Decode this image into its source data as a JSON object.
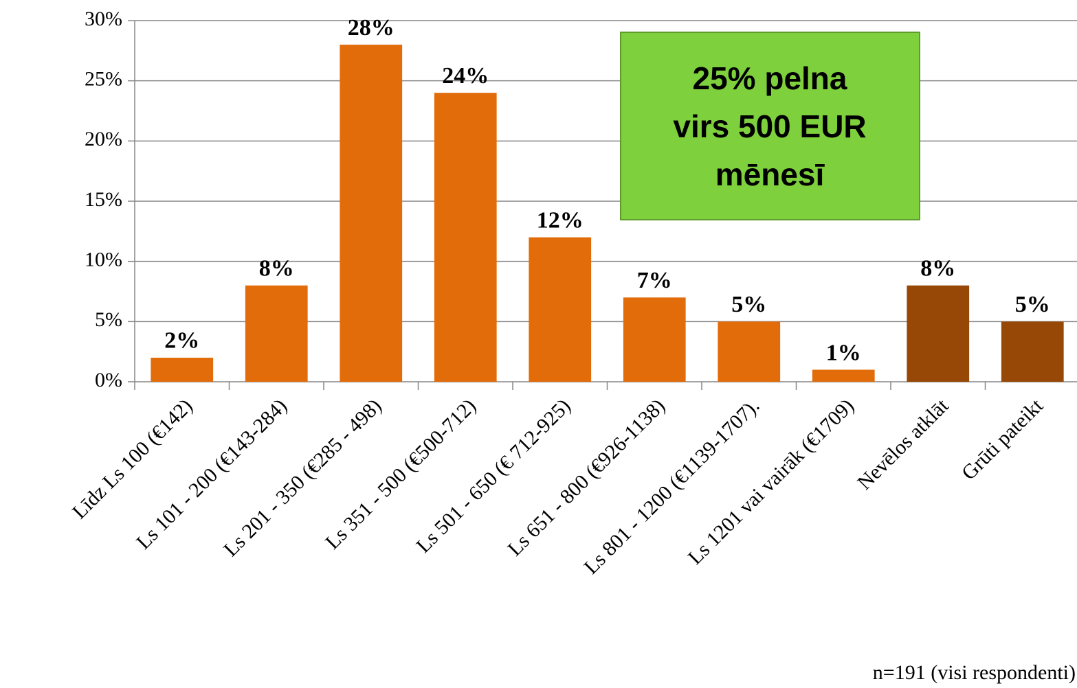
{
  "chart_data": {
    "type": "bar",
    "categories": [
      "Līdz Ls 100 (€142)",
      "Ls 101 - 200 (€143-284)",
      "Ls 201 - 350 (€285 - 498)",
      "Ls 351 - 500 (€500-712)",
      "Ls 501 - 650 (€ 712-925)",
      "Ls 651 - 800 (€926-1138)",
      "Ls 801 - 1200 (€1139-1707).",
      "Ls 1201 vai vairāk (€1709)",
      "Nevēlos atklāt",
      "Grūti pateikt"
    ],
    "values": [
      2,
      8,
      28,
      24,
      12,
      7,
      5,
      1,
      8,
      5
    ],
    "value_labels": [
      "2%",
      "8%",
      "28%",
      "24%",
      "12%",
      "7%",
      "5%",
      "1%",
      "8%",
      "5%"
    ],
    "colors": [
      "#e36c0a",
      "#e36c0a",
      "#e36c0a",
      "#e36c0a",
      "#e36c0a",
      "#e36c0a",
      "#e36c0a",
      "#e36c0a",
      "#974806",
      "#974806"
    ],
    "ylim": [
      0,
      30
    ],
    "yticks": [
      {
        "value": 0,
        "label": "0%"
      },
      {
        "value": 5,
        "label": "5%"
      },
      {
        "value": 10,
        "label": "10%"
      },
      {
        "value": 15,
        "label": "15%"
      },
      {
        "value": 20,
        "label": "20%"
      },
      {
        "value": 25,
        "label": "25%"
      },
      {
        "value": 30,
        "label": "30%"
      }
    ],
    "grid": true,
    "annotation": [
      "25% pelna",
      "virs 500 EUR",
      "mēnesī"
    ],
    "note": "n=191 (visi respondenti)"
  }
}
